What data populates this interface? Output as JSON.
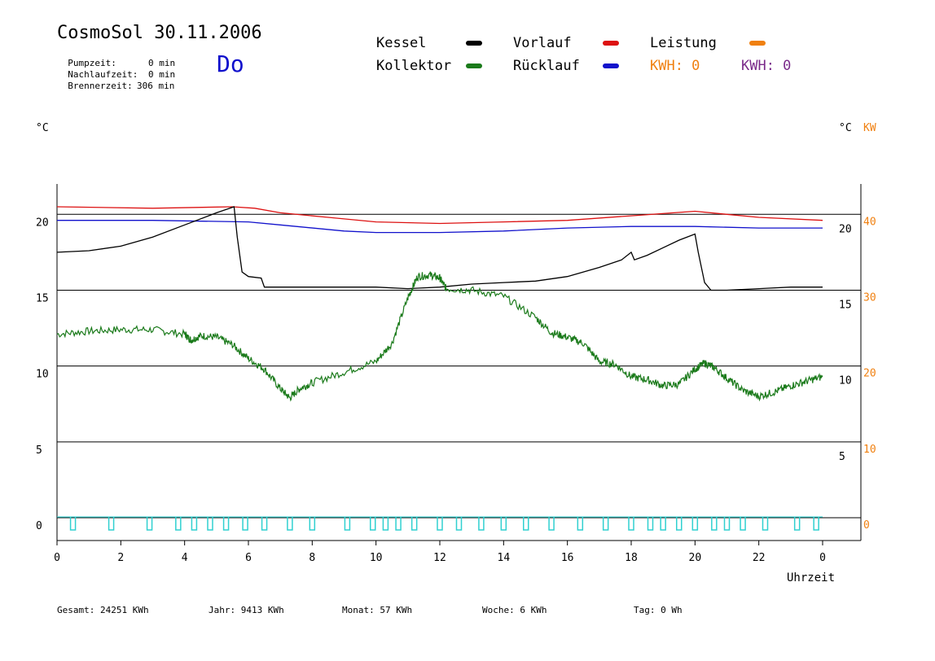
{
  "header": {
    "title": "CosmoSol 30.11.2006",
    "weekday": "Do",
    "info": [
      {
        "label": "Pumpzeit:",
        "value": "0 min"
      },
      {
        "label": "Nachlaufzeit:",
        "value": "0 min"
      },
      {
        "label": "Brennerzeit:",
        "value": "306 min"
      }
    ]
  },
  "legend": {
    "kessel": "Kessel",
    "kollektor": "Kollektor",
    "vorlauf": "Vorlauf",
    "ruecklauf": "Rücklauf",
    "leistung": "Leistung",
    "kwh_orange": "KWH: 0",
    "kwh_purple": "KWH: 0"
  },
  "totals": [
    {
      "label": "Gesamt:",
      "value": "24251 KWh"
    },
    {
      "label": "Jahr:",
      "value": "9413 KWh"
    },
    {
      "label": "Monat:",
      "value": "57 KWh"
    },
    {
      "label": "Woche:",
      "value": "6 KWh"
    },
    {
      "label": "Tag:",
      "value": "0 Wh"
    }
  ],
  "chart_data": {
    "type": "line",
    "xlabel": "Uhrzeit",
    "left_unit": "°C",
    "right_unit_c": "°C",
    "right_unit_kw": "KW",
    "xlim": [
      0,
      24
    ],
    "ylim": [
      -1.5,
      22
    ],
    "x_ticks": [
      "0",
      "2",
      "4",
      "6",
      "8",
      "10",
      "12",
      "14",
      "16",
      "18",
      "20",
      "22",
      "0"
    ],
    "left_ticks": [
      0,
      5,
      10,
      15,
      20
    ],
    "right_ticks_c": [
      5,
      10,
      15,
      20
    ],
    "right_ticks_kw": [
      0,
      10,
      20,
      30,
      40
    ],
    "colors": {
      "kessel": "#000000",
      "kollektor": "#1a7a1a",
      "vorlauf": "#dd1111",
      "ruecklauf": "#1111cc",
      "leistung": "#f08010",
      "pumpe": "#30d0d0",
      "kwh_purple": "#7a2a8a"
    },
    "series": [
      {
        "name": "Vorlauf",
        "points": [
          [
            0,
            20.5
          ],
          [
            3,
            20.4
          ],
          [
            5.5,
            20.5
          ],
          [
            6.2,
            20.4
          ],
          [
            7,
            20.1
          ],
          [
            8.5,
            19.8
          ],
          [
            10,
            19.5
          ],
          [
            12,
            19.4
          ],
          [
            14,
            19.5
          ],
          [
            16,
            19.6
          ],
          [
            18,
            19.9
          ],
          [
            20,
            20.2
          ],
          [
            21,
            20
          ],
          [
            22,
            19.8
          ],
          [
            24,
            19.6
          ]
        ]
      },
      {
        "name": "Rücklauf",
        "points": [
          [
            0,
            19.6
          ],
          [
            3,
            19.6
          ],
          [
            6,
            19.5
          ],
          [
            7,
            19.3
          ],
          [
            9,
            18.9
          ],
          [
            10,
            18.8
          ],
          [
            12,
            18.8
          ],
          [
            14,
            18.9
          ],
          [
            16,
            19.1
          ],
          [
            18,
            19.2
          ],
          [
            20,
            19.2
          ],
          [
            22,
            19.1
          ],
          [
            24,
            19.1
          ]
        ]
      },
      {
        "name": "Kessel",
        "points": [
          [
            0,
            17.5
          ],
          [
            1,
            17.6
          ],
          [
            2,
            17.9
          ],
          [
            3,
            18.5
          ],
          [
            4,
            19.3
          ],
          [
            5,
            20.1
          ],
          [
            5.55,
            20.5
          ],
          [
            5.65,
            18.5
          ],
          [
            5.8,
            16.2
          ],
          [
            6,
            15.9
          ],
          [
            6.4,
            15.8
          ],
          [
            6.5,
            15.2
          ],
          [
            7,
            15.2
          ],
          [
            8,
            15.2
          ],
          [
            9,
            15.2
          ],
          [
            10,
            15.2
          ],
          [
            11,
            15.1
          ],
          [
            12,
            15.2
          ],
          [
            13,
            15.4
          ],
          [
            14,
            15.5
          ],
          [
            15,
            15.6
          ],
          [
            16,
            15.9
          ],
          [
            17,
            16.5
          ],
          [
            17.7,
            17
          ],
          [
            18,
            17.5
          ],
          [
            18.1,
            17
          ],
          [
            18.5,
            17.3
          ],
          [
            19,
            17.8
          ],
          [
            19.5,
            18.3
          ],
          [
            20,
            18.7
          ],
          [
            20.1,
            17.5
          ],
          [
            20.3,
            15.5
          ],
          [
            20.5,
            15
          ],
          [
            21,
            15
          ],
          [
            22,
            15.1
          ],
          [
            23,
            15.2
          ],
          [
            24,
            15.2
          ]
        ]
      },
      {
        "name": "Kollektor",
        "points": [
          [
            0,
            12.1
          ],
          [
            1,
            12.3
          ],
          [
            2,
            12.4
          ],
          [
            3,
            12.4
          ],
          [
            4,
            12.1
          ],
          [
            4.2,
            11.7
          ],
          [
            4.5,
            12
          ],
          [
            5,
            11.9
          ],
          [
            5.5,
            11.4
          ],
          [
            6,
            10.5
          ],
          [
            6.5,
            9.8
          ],
          [
            7,
            8.5
          ],
          [
            7.3,
            7.9
          ],
          [
            7.6,
            8.5
          ],
          [
            8,
            8.9
          ],
          [
            9,
            9.6
          ],
          [
            10,
            10.3
          ],
          [
            10.5,
            11.5
          ],
          [
            11,
            14.5
          ],
          [
            11.3,
            15.9
          ],
          [
            11.7,
            16
          ],
          [
            12,
            15.8
          ],
          [
            12.2,
            15.1
          ],
          [
            13,
            15
          ],
          [
            14,
            14.6
          ],
          [
            15,
            13.2
          ],
          [
            15.5,
            12.2
          ],
          [
            16,
            11.9
          ],
          [
            16.5,
            11.5
          ],
          [
            17,
            10.3
          ],
          [
            17.5,
            10.1
          ],
          [
            18,
            9.3
          ],
          [
            18.5,
            9.1
          ],
          [
            19,
            8.7
          ],
          [
            19.5,
            8.8
          ],
          [
            20,
            9.8
          ],
          [
            20.3,
            10.2
          ],
          [
            20.6,
            9.9
          ],
          [
            21,
            9.2
          ],
          [
            21.5,
            8.4
          ],
          [
            22,
            8
          ],
          [
            22.5,
            8.3
          ],
          [
            23,
            8.7
          ],
          [
            23.5,
            9
          ],
          [
            24,
            9.3
          ]
        ]
      }
    ],
    "pump_pulses_hours": [
      0.5,
      1.7,
      2.9,
      3.8,
      4.3,
      4.8,
      5.3,
      5.9,
      6.5,
      7.3,
      8,
      9.1,
      9.9,
      10.3,
      10.7,
      11.2,
      12,
      12.6,
      13.3,
      14,
      14.7,
      15.5,
      16.4,
      17.2,
      18,
      18.6,
      19,
      19.5,
      20,
      20.6,
      21,
      21.5,
      22.2,
      23.2,
      23.8
    ]
  }
}
